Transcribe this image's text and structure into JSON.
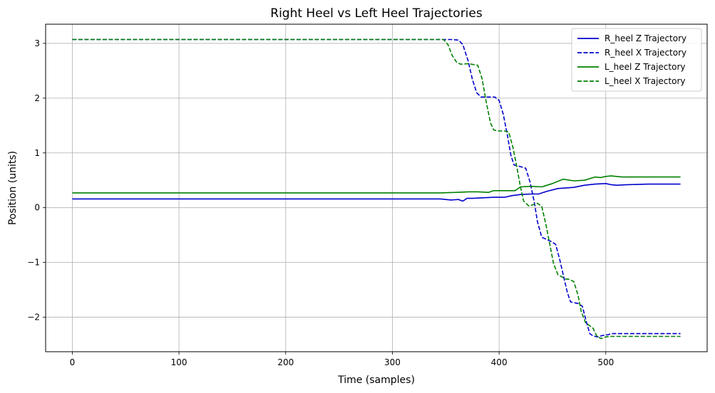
{
  "chart_data": {
    "type": "line",
    "title": "Right Heel vs Left Heel Trajectories",
    "xlabel": "Time (samples)",
    "ylabel": "Position (units)",
    "xlim": [
      -25,
      595
    ],
    "ylim": [
      -2.63,
      3.35
    ],
    "xticks": [
      0,
      100,
      200,
      300,
      400,
      500
    ],
    "yticks": [
      -2,
      -1,
      0,
      1,
      2,
      3
    ],
    "ytick_labels": [
      "−2",
      "−1",
      "0",
      "1",
      "2",
      "3"
    ],
    "grid": true,
    "legend": "top-right",
    "series": [
      {
        "name": "R_heel Z Trajectory",
        "color": "#0000cc",
        "style": "solid",
        "x": [
          0,
          100,
          200,
          300,
          345,
          355,
          362,
          366,
          370,
          375,
          385,
          395,
          405,
          412,
          420,
          430,
          437,
          445,
          455,
          470,
          480,
          490,
          500,
          505,
          510,
          520,
          540,
          570
        ],
        "y": [
          0.16,
          0.16,
          0.16,
          0.16,
          0.16,
          0.14,
          0.15,
          0.12,
          0.17,
          0.17,
          0.18,
          0.19,
          0.19,
          0.22,
          0.24,
          0.25,
          0.25,
          0.3,
          0.35,
          0.37,
          0.41,
          0.43,
          0.44,
          0.42,
          0.41,
          0.42,
          0.43,
          0.43
        ]
      },
      {
        "name": "R_heel X Trajectory",
        "color": "#0000cc",
        "style": "dashed",
        "x": [
          0,
          100,
          200,
          300,
          355,
          362,
          366,
          371,
          375,
          379,
          383,
          396,
          400,
          404,
          408,
          411,
          414,
          420,
          425,
          429,
          433,
          436,
          440,
          449,
          453,
          457,
          461,
          464,
          467,
          474,
          478,
          482,
          485,
          488,
          492,
          498,
          502,
          505,
          509,
          513,
          520,
          540,
          570
        ],
        "y": [
          3.07,
          3.07,
          3.07,
          3.07,
          3.07,
          3.06,
          2.98,
          2.68,
          2.34,
          2.1,
          2.02,
          2.02,
          1.96,
          1.7,
          1.3,
          0.96,
          0.78,
          0.75,
          0.72,
          0.47,
          0.1,
          -0.26,
          -0.54,
          -0.62,
          -0.67,
          -0.96,
          -1.3,
          -1.55,
          -1.72,
          -1.75,
          -1.8,
          -2.1,
          -2.3,
          -2.34,
          -2.36,
          -2.33,
          -2.32,
          -2.3,
          -2.3,
          -2.3,
          -2.3,
          -2.3,
          -2.3
        ]
      },
      {
        "name": "L_heel Z Trajectory",
        "color": "#008000",
        "style": "solid",
        "x": [
          0,
          100,
          200,
          300,
          345,
          360,
          372,
          380,
          390,
          395,
          400,
          410,
          415,
          420,
          430,
          440,
          450,
          460,
          470,
          480,
          490,
          495,
          500,
          505,
          515,
          540,
          570
        ],
        "y": [
          0.27,
          0.27,
          0.27,
          0.27,
          0.27,
          0.28,
          0.29,
          0.29,
          0.28,
          0.31,
          0.31,
          0.31,
          0.31,
          0.38,
          0.39,
          0.38,
          0.44,
          0.52,
          0.49,
          0.5,
          0.56,
          0.55,
          0.57,
          0.58,
          0.56,
          0.56,
          0.56
        ]
      },
      {
        "name": "L_heel X Trajectory",
        "color": "#008000",
        "style": "dashed",
        "x": [
          0,
          100,
          200,
          300,
          348,
          352,
          356,
          360,
          364,
          371,
          380,
          384,
          388,
          392,
          395,
          400,
          405,
          409,
          413,
          417,
          420,
          423,
          428,
          436,
          440,
          444,
          448,
          451,
          455,
          462,
          466,
          470,
          474,
          477,
          481,
          488,
          492,
          496,
          500,
          505,
          510,
          530,
          570
        ],
        "y": [
          3.07,
          3.07,
          3.07,
          3.07,
          3.07,
          2.98,
          2.78,
          2.66,
          2.62,
          2.63,
          2.6,
          2.36,
          1.92,
          1.54,
          1.42,
          1.4,
          1.4,
          1.38,
          1.1,
          0.7,
          0.38,
          0.12,
          0.03,
          0.08,
          0.02,
          -0.32,
          -0.72,
          -1.02,
          -1.22,
          -1.3,
          -1.31,
          -1.35,
          -1.6,
          -1.9,
          -2.1,
          -2.2,
          -2.36,
          -2.39,
          -2.36,
          -2.35,
          -2.35,
          -2.35,
          -2.35
        ]
      }
    ]
  }
}
